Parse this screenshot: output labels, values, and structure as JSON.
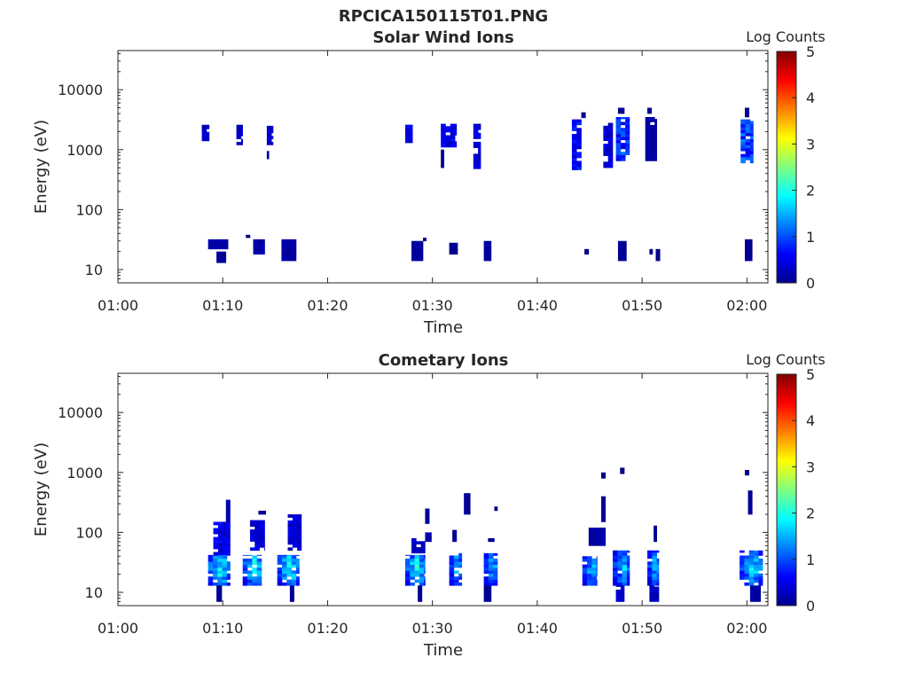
{
  "figure": {
    "title": "RPCICA150115T01.PNG"
  },
  "colorbar": {
    "label": "Log Counts",
    "range": [
      0,
      5
    ],
    "ticks": [
      "0",
      "1",
      "2",
      "3",
      "4",
      "5"
    ],
    "colormap": "jet"
  },
  "chart_data": [
    {
      "type": "heatmap",
      "title": "Solar Wind Ions",
      "xlabel": "Time",
      "ylabel": "Energy (eV)",
      "x_range_minutes": [
        60,
        122
      ],
      "y_range": [
        6,
        45000
      ],
      "yscale": "log",
      "xticks": [
        {
          "m": 60,
          "label": "01:00"
        },
        {
          "m": 70,
          "label": "01:10"
        },
        {
          "m": 80,
          "label": "01:20"
        },
        {
          "m": 90,
          "label": "01:30"
        },
        {
          "m": 100,
          "label": "01:40"
        },
        {
          "m": 110,
          "label": "01:50"
        },
        {
          "m": 120,
          "label": "02:00"
        }
      ],
      "yticks": [
        {
          "v": 10,
          "label": "10"
        },
        {
          "v": 100,
          "label": "100"
        },
        {
          "v": 1000,
          "label": "1000"
        },
        {
          "v": 10000,
          "label": "10000"
        }
      ],
      "clusters": [
        {
          "t": [
            68,
            68.7
          ],
          "e": [
            1400,
            2600
          ],
          "c": 0.3
        },
        {
          "t": [
            71.3,
            71.9
          ],
          "e": [
            1200,
            2600
          ],
          "c": 0.4
        },
        {
          "t": [
            74.2,
            74.8
          ],
          "e": [
            1200,
            2500
          ],
          "c": 0.4
        },
        {
          "t": [
            74.2,
            74.4
          ],
          "e": [
            700,
            950
          ],
          "c": 0.1
        },
        {
          "t": [
            87.4,
            88.1
          ],
          "e": [
            1300,
            2600
          ],
          "c": 0.5
        },
        {
          "t": [
            90.8,
            91.1
          ],
          "e": [
            500,
            1000
          ],
          "c": 0.1
        },
        {
          "t": [
            90.8,
            92.3
          ],
          "e": [
            1100,
            2700
          ],
          "c": 0.5
        },
        {
          "t": [
            93.9,
            94.6
          ],
          "e": [
            480,
            2700
          ],
          "c": 0.4
        },
        {
          "t": [
            103.3,
            104.2
          ],
          "e": [
            460,
            3200
          ],
          "c": 0.6
        },
        {
          "t": [
            104.2,
            104.6
          ],
          "e": [
            3400,
            4200
          ],
          "c": 0.1
        },
        {
          "t": [
            106.3,
            107.2
          ],
          "e": [
            500,
            2800
          ],
          "c": 0.4
        },
        {
          "t": [
            107.5,
            108.8
          ],
          "e": [
            650,
            3500
          ],
          "c": 0.8
        },
        {
          "t": [
            107.7,
            108.3
          ],
          "e": [
            4000,
            5000
          ],
          "c": 0.1
        },
        {
          "t": [
            110.3,
            111.4
          ],
          "e": [
            650,
            3500
          ],
          "c": 1.1
        },
        {
          "t": [
            110.5,
            110.9
          ],
          "e": [
            4000,
            5000
          ],
          "c": 0.1
        },
        {
          "t": [
            119.4,
            120.6
          ],
          "e": [
            600,
            3200
          ],
          "c": 0.9
        },
        {
          "t": [
            119.8,
            120.2
          ],
          "e": [
            3500,
            5000
          ],
          "c": 0.1
        },
        {
          "t": [
            68.6,
            70.5
          ],
          "e": [
            22,
            32
          ],
          "c": 0.2
        },
        {
          "t": [
            69.4,
            70.3
          ],
          "e": [
            13,
            20
          ],
          "c": 0.1
        },
        {
          "t": [
            72.2,
            72.6
          ],
          "e": [
            34,
            38
          ],
          "c": 0.05
        },
        {
          "t": [
            72.9,
            74
          ],
          "e": [
            18,
            32
          ],
          "c": 0.2
        },
        {
          "t": [
            75.6,
            77
          ],
          "e": [
            14,
            32
          ],
          "c": 0.2
        },
        {
          "t": [
            88,
            89.1
          ],
          "e": [
            14,
            30
          ],
          "c": 0.15
        },
        {
          "t": [
            89.1,
            89.4
          ],
          "e": [
            30,
            34
          ],
          "c": 0.05
        },
        {
          "t": [
            91.6,
            92.4
          ],
          "e": [
            18,
            28
          ],
          "c": 0.1
        },
        {
          "t": [
            94.9,
            95.6
          ],
          "e": [
            14,
            30
          ],
          "c": 0.15
        },
        {
          "t": [
            104.5,
            104.9
          ],
          "e": [
            18,
            22
          ],
          "c": 0.05
        },
        {
          "t": [
            107.7,
            108.5
          ],
          "e": [
            14,
            30
          ],
          "c": 0.1
        },
        {
          "t": [
            110.7,
            111
          ],
          "e": [
            18,
            22
          ],
          "c": 0.05
        },
        {
          "t": [
            111.3,
            111.7
          ],
          "e": [
            14,
            22
          ],
          "c": 0.05
        },
        {
          "t": [
            119.8,
            120.5
          ],
          "e": [
            14,
            32
          ],
          "c": 0.1
        }
      ]
    },
    {
      "type": "heatmap",
      "title": "Cometary Ions",
      "xlabel": "Time",
      "ylabel": "Energy (eV)",
      "x_range_minutes": [
        60,
        122
      ],
      "y_range": [
        6,
        45000
      ],
      "yscale": "log",
      "xticks": [
        {
          "m": 60,
          "label": "01:00"
        },
        {
          "m": 70,
          "label": "01:10"
        },
        {
          "m": 80,
          "label": "01:20"
        },
        {
          "m": 90,
          "label": "01:30"
        },
        {
          "m": 100,
          "label": "01:40"
        },
        {
          "m": 110,
          "label": "01:50"
        },
        {
          "m": 120,
          "label": "02:00"
        }
      ],
      "yticks": [
        {
          "v": 10,
          "label": "10"
        },
        {
          "v": 100,
          "label": "100"
        },
        {
          "v": 1000,
          "label": "1000"
        },
        {
          "v": 10000,
          "label": "10000"
        }
      ],
      "clusters": [
        {
          "t": [
            68.6,
            70.7
          ],
          "e": [
            13,
            42
          ],
          "c": 1.6
        },
        {
          "t": [
            69.1,
            70.7
          ],
          "e": [
            42,
            150
          ],
          "c": 0.5
        },
        {
          "t": [
            70.3,
            70.7
          ],
          "e": [
            150,
            350
          ],
          "c": 0.2
        },
        {
          "t": [
            69.4,
            69.9
          ],
          "e": [
            7,
            13
          ],
          "c": 0.1
        },
        {
          "t": [
            71.9,
            73.7
          ],
          "e": [
            13,
            42
          ],
          "c": 1.6
        },
        {
          "t": [
            72.6,
            74
          ],
          "e": [
            50,
            160
          ],
          "c": 0.4
        },
        {
          "t": [
            73.4,
            74.1
          ],
          "e": [
            200,
            230
          ],
          "c": 0.05
        },
        {
          "t": [
            75.2,
            77.3
          ],
          "e": [
            13,
            42
          ],
          "c": 1.6
        },
        {
          "t": [
            76.2,
            77.5
          ],
          "e": [
            50,
            200
          ],
          "c": 0.4
        },
        {
          "t": [
            76.4,
            76.8
          ],
          "e": [
            7,
            13
          ],
          "c": 0.1
        },
        {
          "t": [
            87.4,
            89.3
          ],
          "e": [
            13,
            42
          ],
          "c": 1.6
        },
        {
          "t": [
            88,
            89.3
          ],
          "e": [
            45,
            80
          ],
          "c": 0.3
        },
        {
          "t": [
            89.3,
            89.9
          ],
          "e": [
            70,
            100
          ],
          "c": 0.2
        },
        {
          "t": [
            89.3,
            89.7
          ],
          "e": [
            140,
            250
          ],
          "c": 0.1
        },
        {
          "t": [
            88.6,
            89
          ],
          "e": [
            7,
            13
          ],
          "c": 0.1
        },
        {
          "t": [
            91.6,
            92.8
          ],
          "e": [
            13,
            45
          ],
          "c": 1.3
        },
        {
          "t": [
            91.9,
            92.3
          ],
          "e": [
            70,
            110
          ],
          "c": 0.1
        },
        {
          "t": [
            93,
            93.6
          ],
          "e": [
            200,
            450
          ],
          "c": 0.1
        },
        {
          "t": [
            94.9,
            96.2
          ],
          "e": [
            13,
            45
          ],
          "c": 1.3
        },
        {
          "t": [
            95.3,
            95.9
          ],
          "e": [
            70,
            80
          ],
          "c": 0.1
        },
        {
          "t": [
            94.9,
            95.6
          ],
          "e": [
            7,
            13
          ],
          "c": 0.1
        },
        {
          "t": [
            95.9,
            96.2
          ],
          "e": [
            230,
            270
          ],
          "c": 0.05
        },
        {
          "t": [
            104.3,
            105.7
          ],
          "e": [
            13,
            40
          ],
          "c": 1.3
        },
        {
          "t": [
            104.9,
            106.5
          ],
          "e": [
            60,
            120
          ],
          "c": 0.2
        },
        {
          "t": [
            106.1,
            106.5
          ],
          "e": [
            150,
            400
          ],
          "c": 0.1
        },
        {
          "t": [
            107.2,
            108.8
          ],
          "e": [
            13,
            50
          ],
          "c": 1.3
        },
        {
          "t": [
            107.5,
            108.3
          ],
          "e": [
            7,
            13
          ],
          "c": 0.3
        },
        {
          "t": [
            106.1,
            106.5
          ],
          "e": [
            800,
            1000
          ],
          "c": 0.05
        },
        {
          "t": [
            107.9,
            108.3
          ],
          "e": [
            950,
            1200
          ],
          "c": 0.05
        },
        {
          "t": [
            110.5,
            111.6
          ],
          "e": [
            13,
            50
          ],
          "c": 1.3
        },
        {
          "t": [
            110.7,
            111.6
          ],
          "e": [
            7,
            13
          ],
          "c": 0.3
        },
        {
          "t": [
            111.1,
            111.4
          ],
          "e": [
            70,
            130
          ],
          "c": 0.1
        },
        {
          "t": [
            119.3,
            121.5
          ],
          "e": [
            13,
            50
          ],
          "c": 1.4
        },
        {
          "t": [
            120.1,
            120.5
          ],
          "e": [
            200,
            500
          ],
          "c": 0.1
        },
        {
          "t": [
            120.3,
            121.3
          ],
          "e": [
            7,
            13
          ],
          "c": 0.2
        },
        {
          "t": [
            119.8,
            120.2
          ],
          "e": [
            900,
            1100
          ],
          "c": 0.05
        }
      ]
    }
  ]
}
